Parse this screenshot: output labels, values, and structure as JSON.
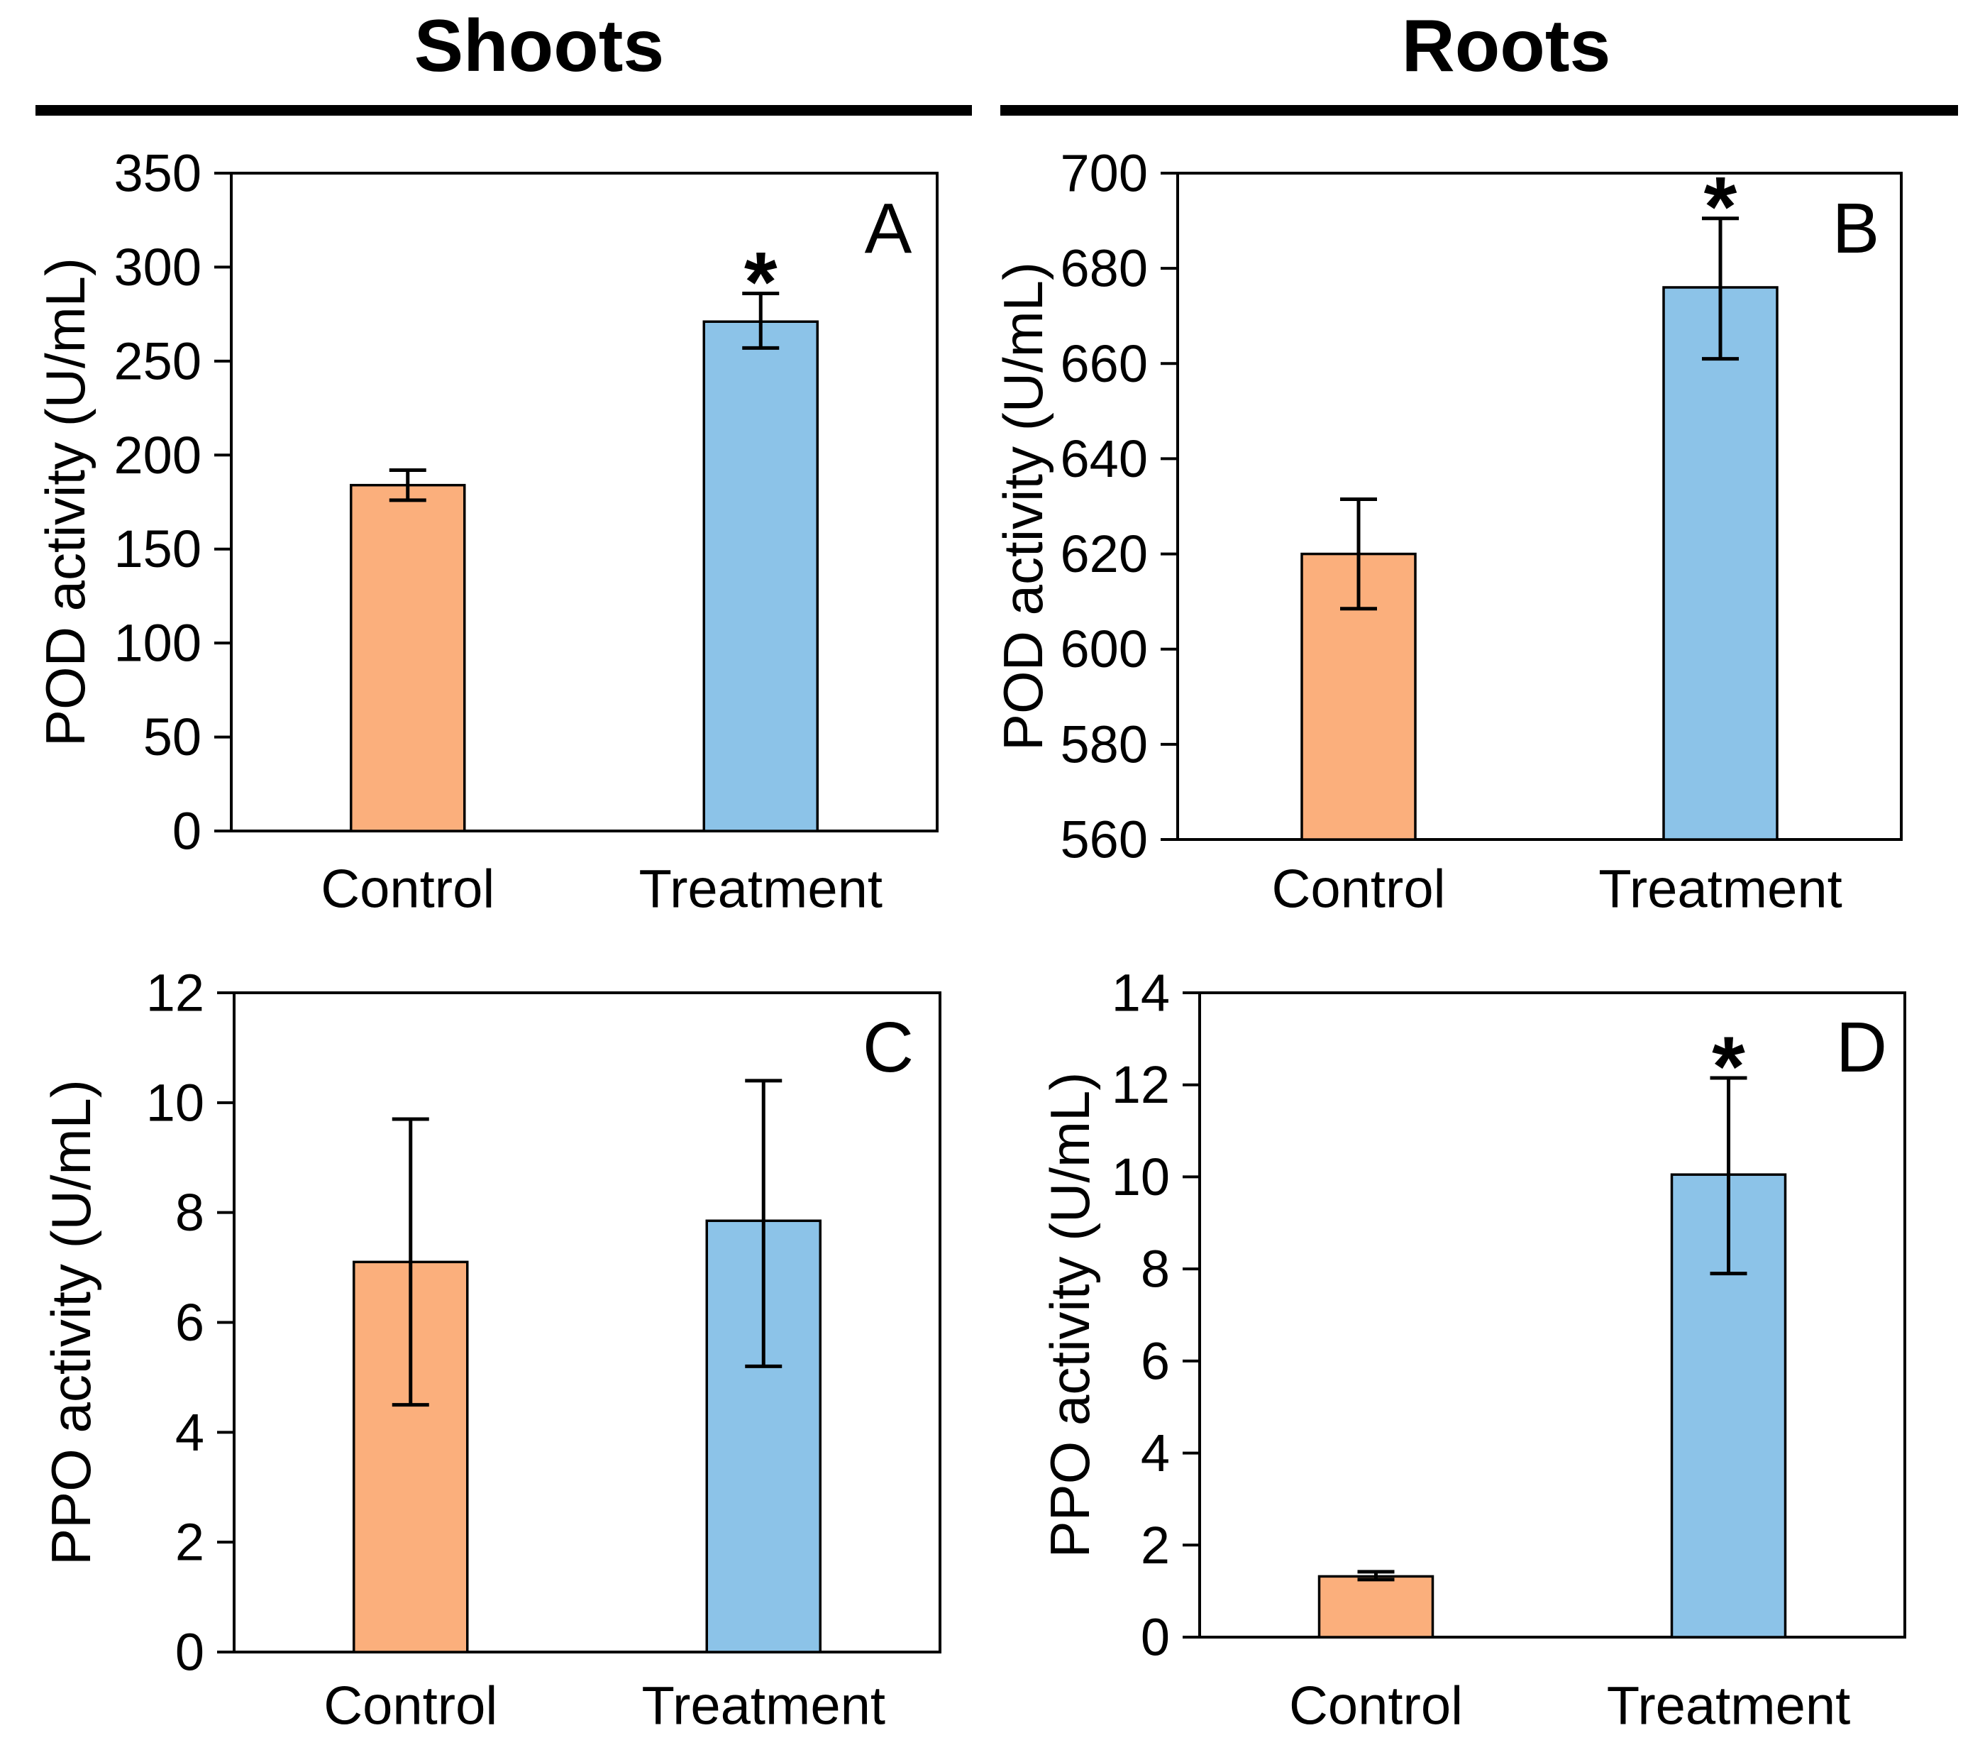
{
  "figure": {
    "column_headers": [
      {
        "id": "shoots",
        "label": "Shoots"
      },
      {
        "id": "roots",
        "label": "Roots"
      }
    ],
    "significance_marker": "*",
    "colors": {
      "control_fill": "#FBAF7C",
      "treatment_fill": "#8CC3E8",
      "axis": "#000000",
      "background": "#FFFFFF"
    }
  },
  "chart_data": [
    {
      "id": "A",
      "type": "bar",
      "panel_label": "A",
      "column": "Shoots",
      "title": "",
      "xlabel": "",
      "ylabel": "POD activity (U/mL)",
      "categories": [
        "Control",
        "Treatment"
      ],
      "values": [
        184,
        271
      ],
      "errors": [
        {
          "low": 176,
          "high": 192
        },
        {
          "low": 257,
          "high": 286
        }
      ],
      "significant": [
        false,
        true
      ],
      "ylim": [
        0,
        350
      ],
      "yticks": [
        0,
        50,
        100,
        150,
        200,
        250,
        300,
        350
      ],
      "bar_colors": [
        "#FBAF7C",
        "#8CC3E8"
      ],
      "grid": false
    },
    {
      "id": "B",
      "type": "bar",
      "panel_label": "B",
      "column": "Roots",
      "title": "",
      "xlabel": "",
      "ylabel": "POD activity (U/mL)",
      "categories": [
        "Control",
        "Treatment"
      ],
      "values": [
        620,
        676
      ],
      "errors": [
        {
          "low": 608.5,
          "high": 631.5
        },
        {
          "low": 661,
          "high": 690.5
        }
      ],
      "significant": [
        false,
        true
      ],
      "ylim": [
        560,
        700
      ],
      "yticks": [
        560,
        580,
        600,
        620,
        640,
        660,
        680,
        700
      ],
      "bar_colors": [
        "#FBAF7C",
        "#8CC3E8"
      ],
      "grid": false
    },
    {
      "id": "C",
      "type": "bar",
      "panel_label": "C",
      "column": "Shoots",
      "title": "",
      "xlabel": "",
      "ylabel": "PPO activity (U/mL)",
      "categories": [
        "Control",
        "Treatment"
      ],
      "values": [
        7.1,
        7.85
      ],
      "errors": [
        {
          "low": 4.5,
          "high": 9.7
        },
        {
          "low": 5.2,
          "high": 10.4
        }
      ],
      "significant": [
        false,
        false
      ],
      "ylim": [
        0,
        12
      ],
      "yticks": [
        0,
        2,
        4,
        6,
        8,
        10,
        12
      ],
      "bar_colors": [
        "#FBAF7C",
        "#8CC3E8"
      ],
      "grid": false
    },
    {
      "id": "D",
      "type": "bar",
      "panel_label": "D",
      "column": "Roots",
      "title": "",
      "xlabel": "",
      "ylabel": "PPO activity (U/mL)",
      "categories": [
        "Control",
        "Treatment"
      ],
      "values": [
        1.32,
        10.05
      ],
      "errors": [
        {
          "low": 1.25,
          "high": 1.42
        },
        {
          "low": 7.9,
          "high": 12.15
        }
      ],
      "significant": [
        false,
        true
      ],
      "ylim": [
        0,
        14
      ],
      "yticks": [
        0,
        2,
        4,
        6,
        8,
        10,
        12,
        14
      ],
      "bar_colors": [
        "#FBAF7C",
        "#8CC3E8"
      ],
      "grid": false
    }
  ]
}
